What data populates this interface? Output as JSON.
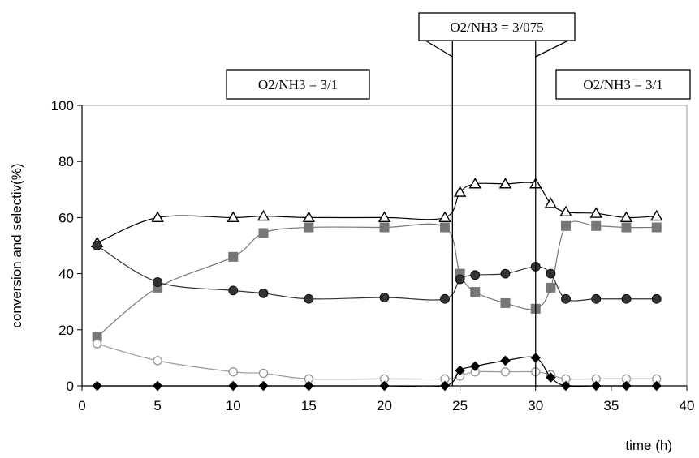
{
  "chart_data": {
    "type": "line",
    "title": "",
    "xlabel": "time (h)",
    "ylabel": "conversion and selectiv(%)",
    "xlim": [
      0,
      40
    ],
    "ylim": [
      0,
      100
    ],
    "xticks": [
      0,
      5,
      10,
      15,
      20,
      25,
      30,
      35,
      40
    ],
    "yticks": [
      0,
      20,
      40,
      60,
      80,
      100
    ],
    "grid": false,
    "legend": "none",
    "annotations": [
      {
        "id": "left",
        "text": "O2/NH3 = 3/1"
      },
      {
        "id": "middle",
        "text": "O2/NH3 = 3/075"
      },
      {
        "id": "right",
        "text": "O2/NH3 = 3/1"
      }
    ],
    "period_lines_x": [
      24.5,
      30
    ],
    "series": [
      {
        "marker": "triangle-open",
        "color": "#000000",
        "x": [
          1,
          5,
          10,
          12,
          15,
          20,
          24,
          25,
          26,
          28,
          30,
          31,
          32,
          34,
          36,
          38
        ],
        "y": [
          51,
          60,
          60,
          60.5,
          60,
          60,
          60,
          69,
          72,
          72,
          72,
          65,
          62,
          61.5,
          60,
          60.5
        ]
      },
      {
        "marker": "square",
        "color": "#777777",
        "x": [
          1,
          5,
          10,
          12,
          15,
          20,
          24,
          25,
          26,
          28,
          30,
          31,
          32,
          34,
          36,
          38
        ],
        "y": [
          17.5,
          35,
          46,
          54.5,
          56.5,
          56.5,
          56.5,
          40,
          33.5,
          29.5,
          27.5,
          35,
          57,
          57,
          56.5,
          56.5
        ]
      },
      {
        "marker": "circle",
        "color": "#333333",
        "x": [
          1,
          5,
          10,
          12,
          15,
          20,
          24,
          25,
          26,
          28,
          30,
          31,
          32,
          34,
          36,
          38
        ],
        "y": [
          50,
          37,
          34,
          33,
          31,
          31.5,
          31,
          38,
          39.5,
          40,
          42.5,
          40,
          31,
          31,
          31,
          31
        ]
      },
      {
        "marker": "circle-open",
        "color": "#999999",
        "x": [
          1,
          5,
          10,
          12,
          15,
          20,
          24,
          25,
          26,
          28,
          30,
          31,
          32,
          34,
          36,
          38
        ],
        "y": [
          15,
          9,
          5,
          4.5,
          2.5,
          2.5,
          2.5,
          3.5,
          5,
          5,
          5,
          4,
          2.5,
          2.5,
          2.5,
          2.5
        ]
      },
      {
        "marker": "diamond",
        "color": "#000000",
        "x": [
          1,
          5,
          10,
          12,
          15,
          20,
          24,
          25,
          26,
          28,
          30,
          31,
          32,
          34,
          36,
          38
        ],
        "y": [
          0,
          0,
          0,
          0,
          0,
          0,
          0,
          5.5,
          7,
          9,
          10,
          3,
          0,
          0,
          0,
          0
        ]
      }
    ]
  }
}
